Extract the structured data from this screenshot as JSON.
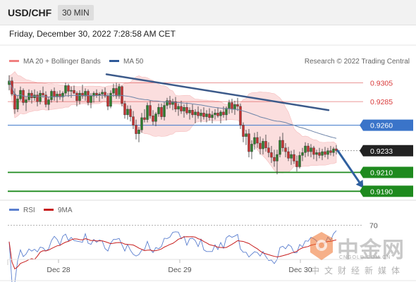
{
  "header": {
    "symbol": "USD/CHF",
    "timeframe": "30 MIN"
  },
  "datetime": "Friday, December 30, 2022 7:28:58 AM CET",
  "legend": {
    "bollinger": "MA 20 + Bollinger Bands",
    "ma50": "MA 50",
    "credit": "Research © 2022 Trading Central"
  },
  "rsi_legend": {
    "rsi": "RSI",
    "ma": "9MA"
  },
  "colors": {
    "resistance": "#d93a3a",
    "pivot": "#3a74c9",
    "support": "#1e8a1e",
    "bollinger_fill": "#fbdede",
    "ma50": "#6d84a8",
    "trendline": "#3c5a8a",
    "rsi": "#5b7fcf",
    "rsi_ma": "#c71d1d",
    "candle_up": "#2c7d2c",
    "candle_down": "#c33030"
  },
  "watermark": {
    "name": "中金网",
    "url": "CNGOLD.COM.CN",
    "tagline": "中文财经新媒体"
  },
  "chart_data": {
    "type": "candlestick",
    "instrument": "USD/CHF",
    "timeframe": "30 MIN",
    "y_range": [
      0.9182,
      0.9318
    ],
    "x_ticks": [
      "Dec 28",
      "Dec 29",
      "Dec 30"
    ],
    "levels": [
      {
        "label": "0.9305",
        "value": 0.9305,
        "kind": "resistance"
      },
      {
        "label": "0.9285",
        "value": 0.9285,
        "kind": "resistance"
      },
      {
        "label": "0.9260",
        "value": 0.926,
        "kind": "pivot"
      },
      {
        "label": "0.9233",
        "value": 0.9233,
        "kind": "last_price"
      },
      {
        "label": "0.9210",
        "value": 0.921,
        "kind": "support"
      },
      {
        "label": "0.9190",
        "value": 0.919,
        "kind": "support"
      }
    ],
    "trendline": {
      "from": [
        0,
        0.9314
      ],
      "to": [
        122,
        0.9276
      ]
    },
    "projection": {
      "from": [
        116,
        0.9233
      ],
      "to": [
        122,
        0.919
      ]
    },
    "rsi": {
      "level_label": "70",
      "level": 70,
      "range": [
        30,
        80
      ]
    },
    "candles": [
      [
        0.9303,
        0.9313,
        0.9297,
        0.9307
      ],
      [
        0.9307,
        0.9311,
        0.9291,
        0.9293
      ],
      [
        0.9293,
        0.9299,
        0.9272,
        0.9277
      ],
      [
        0.9277,
        0.9292,
        0.9274,
        0.9288
      ],
      [
        0.9288,
        0.9301,
        0.9286,
        0.9297
      ],
      [
        0.9297,
        0.9299,
        0.9281,
        0.9284
      ],
      [
        0.9284,
        0.929,
        0.9275,
        0.9287
      ],
      [
        0.9287,
        0.9298,
        0.9285,
        0.9294
      ],
      [
        0.9294,
        0.9297,
        0.9283,
        0.9289
      ],
      [
        0.9289,
        0.9298,
        0.9286,
        0.9292
      ],
      [
        0.9292,
        0.9296,
        0.928,
        0.9285
      ],
      [
        0.9285,
        0.9297,
        0.9282,
        0.9294
      ],
      [
        0.9294,
        0.9301,
        0.9289,
        0.9292
      ],
      [
        0.9292,
        0.9296,
        0.9279,
        0.9282
      ],
      [
        0.9282,
        0.929,
        0.9276,
        0.9287
      ],
      [
        0.9287,
        0.9298,
        0.9284,
        0.9296
      ],
      [
        0.9296,
        0.93,
        0.9286,
        0.929
      ],
      [
        0.929,
        0.9296,
        0.9284,
        0.9293
      ],
      [
        0.9293,
        0.9297,
        0.9287,
        0.929
      ],
      [
        0.929,
        0.9296,
        0.9285,
        0.9294
      ],
      [
        0.9294,
        0.9305,
        0.9291,
        0.9302
      ],
      [
        0.9302,
        0.9304,
        0.929,
        0.9296
      ],
      [
        0.9296,
        0.9301,
        0.9289,
        0.9297
      ],
      [
        0.9297,
        0.9302,
        0.9293,
        0.9294
      ],
      [
        0.9294,
        0.9296,
        0.928,
        0.9286
      ],
      [
        0.9286,
        0.9297,
        0.9282,
        0.9294
      ],
      [
        0.9294,
        0.9303,
        0.9288,
        0.9291
      ],
      [
        0.9291,
        0.9299,
        0.9286,
        0.9296
      ],
      [
        0.9296,
        0.9298,
        0.9281,
        0.9284
      ],
      [
        0.9284,
        0.9294,
        0.9278,
        0.9291
      ],
      [
        0.9291,
        0.9296,
        0.9284,
        0.9294
      ],
      [
        0.9294,
        0.9298,
        0.9289,
        0.9292
      ],
      [
        0.9292,
        0.9295,
        0.9285,
        0.9293
      ],
      [
        0.9293,
        0.9298,
        0.9288,
        0.9295
      ],
      [
        0.9295,
        0.93,
        0.9289,
        0.9291
      ],
      [
        0.9291,
        0.9294,
        0.9276,
        0.928
      ],
      [
        0.928,
        0.9297,
        0.9278,
        0.9294
      ],
      [
        0.9294,
        0.9304,
        0.929,
        0.9299
      ],
      [
        0.9299,
        0.9305,
        0.9288,
        0.9291
      ],
      [
        0.9291,
        0.9304,
        0.9288,
        0.9301
      ],
      [
        0.9301,
        0.9302,
        0.928,
        0.9283
      ],
      [
        0.9283,
        0.9286,
        0.9267,
        0.9271
      ],
      [
        0.9271,
        0.9281,
        0.9266,
        0.9277
      ],
      [
        0.9277,
        0.9281,
        0.9264,
        0.9269
      ],
      [
        0.9269,
        0.9275,
        0.9256,
        0.926
      ],
      [
        0.926,
        0.9266,
        0.9245,
        0.9251
      ],
      [
        0.9251,
        0.9258,
        0.9242,
        0.9255
      ],
      [
        0.9255,
        0.9273,
        0.9252,
        0.9268
      ],
      [
        0.9268,
        0.9277,
        0.9263,
        0.9266
      ],
      [
        0.9266,
        0.9284,
        0.9263,
        0.9281
      ],
      [
        0.9281,
        0.9286,
        0.9267,
        0.927
      ],
      [
        0.927,
        0.9276,
        0.926,
        0.9264
      ],
      [
        0.9264,
        0.9274,
        0.9259,
        0.9272
      ],
      [
        0.9272,
        0.9283,
        0.9269,
        0.9279
      ],
      [
        0.9279,
        0.9283,
        0.9266,
        0.9269
      ],
      [
        0.9269,
        0.9285,
        0.9265,
        0.9281
      ],
      [
        0.9281,
        0.9289,
        0.9277,
        0.9286
      ],
      [
        0.9286,
        0.9291,
        0.9278,
        0.9282
      ],
      [
        0.9282,
        0.9288,
        0.9276,
        0.9285
      ],
      [
        0.9285,
        0.929,
        0.9274,
        0.9277
      ],
      [
        0.9277,
        0.9283,
        0.927,
        0.928
      ],
      [
        0.928,
        0.9286,
        0.9272,
        0.9275
      ],
      [
        0.9275,
        0.9282,
        0.9268,
        0.9279
      ],
      [
        0.9279,
        0.9284,
        0.9271,
        0.9273
      ],
      [
        0.9273,
        0.9279,
        0.9266,
        0.9276
      ],
      [
        0.9276,
        0.9282,
        0.9268,
        0.9271
      ],
      [
        0.9271,
        0.9277,
        0.9262,
        0.9274
      ],
      [
        0.9274,
        0.928,
        0.9267,
        0.927
      ],
      [
        0.927,
        0.9277,
        0.9263,
        0.9273
      ],
      [
        0.9273,
        0.9279,
        0.9266,
        0.9269
      ],
      [
        0.9269,
        0.9276,
        0.9263,
        0.9272
      ],
      [
        0.9272,
        0.9278,
        0.9265,
        0.9268
      ],
      [
        0.9268,
        0.9275,
        0.9262,
        0.9271
      ],
      [
        0.9271,
        0.9277,
        0.9266,
        0.9273
      ],
      [
        0.9273,
        0.9279,
        0.9268,
        0.927
      ],
      [
        0.927,
        0.9276,
        0.9262,
        0.9274
      ],
      [
        0.9274,
        0.928,
        0.9268,
        0.9271
      ],
      [
        0.9271,
        0.928,
        0.9265,
        0.9278
      ],
      [
        0.9278,
        0.9287,
        0.9272,
        0.9284
      ],
      [
        0.9284,
        0.9288,
        0.9273,
        0.9277
      ],
      [
        0.9277,
        0.9286,
        0.9271,
        0.9282
      ],
      [
        0.9282,
        0.9289,
        0.9275,
        0.928
      ],
      [
        0.928,
        0.9283,
        0.9256,
        0.926
      ],
      [
        0.926,
        0.9263,
        0.9242,
        0.9248
      ],
      [
        0.9248,
        0.9255,
        0.9239,
        0.9251
      ],
      [
        0.9251,
        0.9256,
        0.9226,
        0.9232
      ],
      [
        0.9232,
        0.9244,
        0.9224,
        0.924
      ],
      [
        0.924,
        0.9252,
        0.9234,
        0.9247
      ],
      [
        0.9247,
        0.9253,
        0.9236,
        0.9241
      ],
      [
        0.9241,
        0.9248,
        0.9229,
        0.9235
      ],
      [
        0.9235,
        0.9246,
        0.9229,
        0.9243
      ],
      [
        0.9243,
        0.925,
        0.9232,
        0.9236
      ],
      [
        0.9236,
        0.9242,
        0.9226,
        0.9231
      ],
      [
        0.9231,
        0.9238,
        0.922,
        0.9226
      ],
      [
        0.9226,
        0.9234,
        0.9216,
        0.9222
      ],
      [
        0.9222,
        0.9234,
        0.9208,
        0.9229
      ],
      [
        0.9229,
        0.9248,
        0.9226,
        0.9244
      ],
      [
        0.9244,
        0.9252,
        0.9232,
        0.9236
      ],
      [
        0.9236,
        0.9241,
        0.9226,
        0.9232
      ],
      [
        0.9232,
        0.9237,
        0.9222,
        0.9225
      ],
      [
        0.9225,
        0.9233,
        0.9218,
        0.9229
      ],
      [
        0.9229,
        0.9234,
        0.9219,
        0.9222
      ],
      [
        0.9222,
        0.9228,
        0.9211,
        0.9216
      ],
      [
        0.9216,
        0.9232,
        0.9214,
        0.9228
      ],
      [
        0.9228,
        0.9236,
        0.9222,
        0.9231
      ],
      [
        0.9231,
        0.9242,
        0.9226,
        0.9238
      ],
      [
        0.9238,
        0.9241,
        0.9227,
        0.9232
      ],
      [
        0.9232,
        0.924,
        0.9226,
        0.9236
      ],
      [
        0.9236,
        0.9238,
        0.9224,
        0.9229
      ],
      [
        0.9229,
        0.9234,
        0.9222,
        0.9231
      ],
      [
        0.9231,
        0.9236,
        0.9225,
        0.9228
      ],
      [
        0.9228,
        0.9235,
        0.9223,
        0.9232
      ],
      [
        0.9232,
        0.9237,
        0.9226,
        0.9229
      ],
      [
        0.9229,
        0.9236,
        0.9224,
        0.9233
      ],
      [
        0.9233,
        0.9238,
        0.9228,
        0.9231
      ],
      [
        0.9231,
        0.9237,
        0.9227,
        0.9235
      ],
      [
        0.9235,
        0.9239,
        0.9229,
        0.9233
      ]
    ]
  }
}
